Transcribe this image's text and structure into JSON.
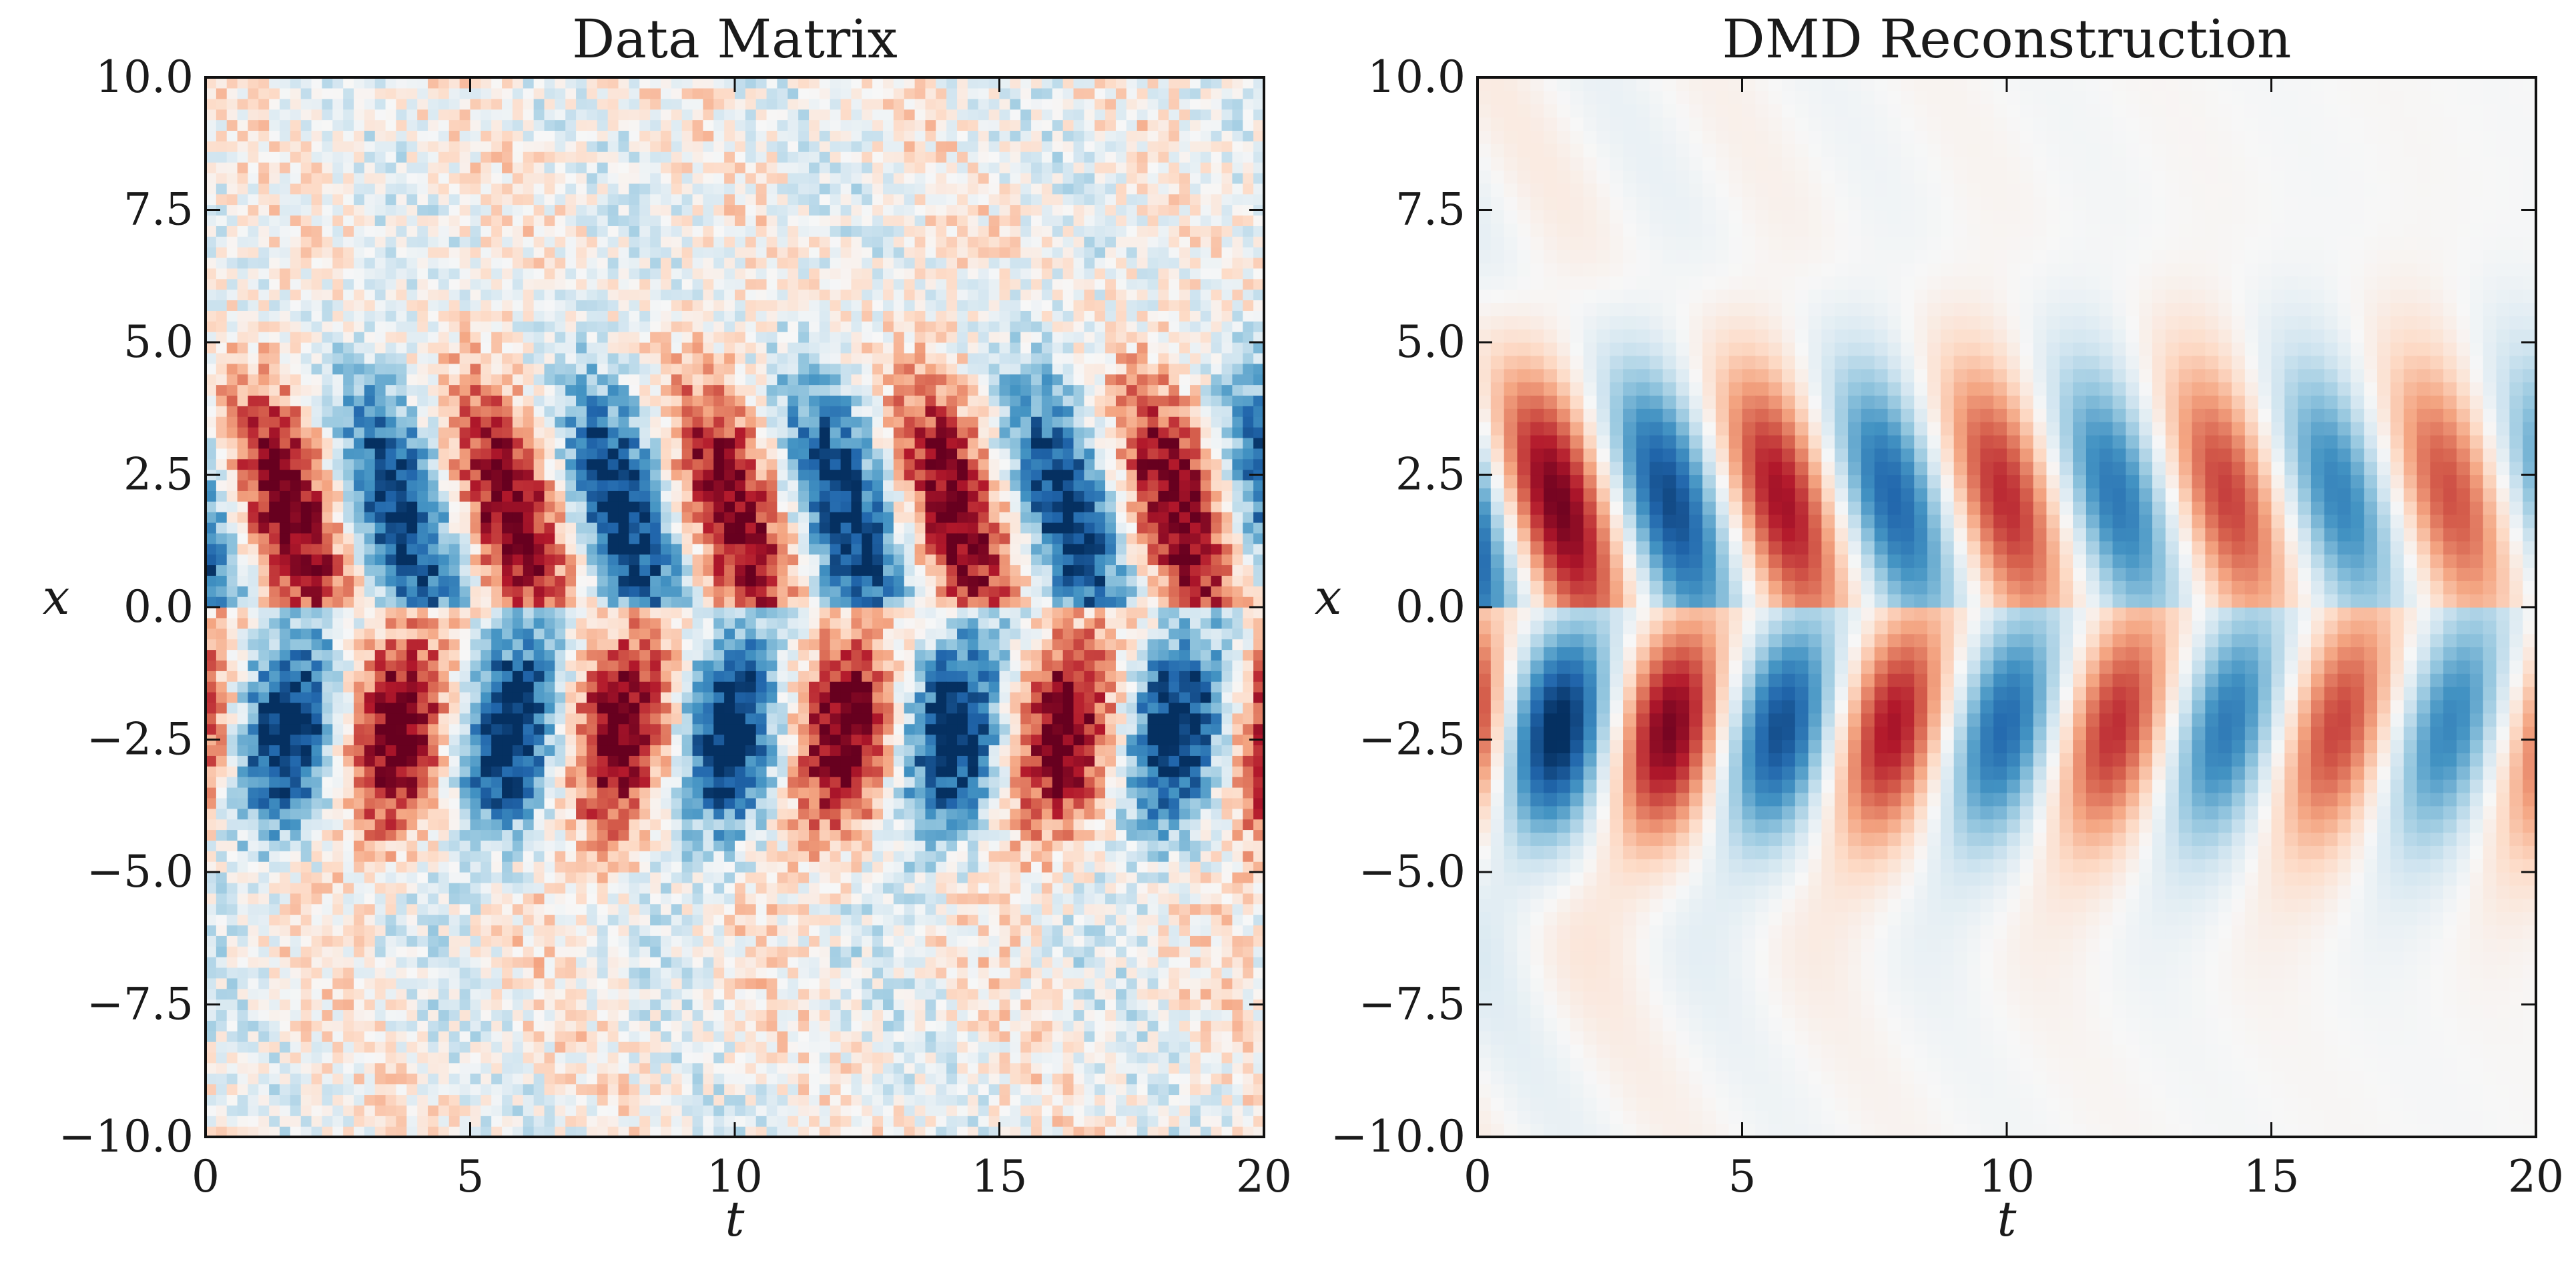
{
  "chart_data": [
    {
      "type": "heatmap",
      "title": "Data Matrix",
      "xlabel": "t",
      "ylabel": "x",
      "xlim": [
        0,
        20
      ],
      "ylim": [
        -10,
        10
      ],
      "xticks": [
        "0",
        "5",
        "10",
        "15",
        "20"
      ],
      "yticks": [
        "10.0",
        "7.5",
        "5.0",
        "2.5",
        "0.0",
        "−2.5",
        "−5.0",
        "−7.5",
        "−10.0"
      ],
      "colormap": [
        "#053061",
        "#2166ac",
        "#4393c3",
        "#92c5de",
        "#d1e5f0",
        "#f7f7f7",
        "#fddbc7",
        "#f4a582",
        "#d6604d",
        "#b2182b",
        "#67001f"
      ],
      "field": {
        "description_of_pattern": "alternating blue/red lobes, sign flips across x = 0",
        "oscillation_period_t": 4.2,
        "spatial_envelope_center": 2.2,
        "spatial_envelope_width": 2.6,
        "noisy": true,
        "decay": false
      }
    },
    {
      "type": "heatmap",
      "title": "DMD Reconstruction",
      "xlabel": "t",
      "ylabel": "x",
      "xlim": [
        0,
        20
      ],
      "ylim": [
        -10,
        10
      ],
      "xticks": [
        "0",
        "5",
        "10",
        "15",
        "20"
      ],
      "yticks": [
        "10.0",
        "7.5",
        "5.0",
        "2.5",
        "0.0",
        "−2.5",
        "−5.0",
        "−7.5",
        "−10.0"
      ],
      "colormap": [
        "#053061",
        "#2166ac",
        "#4393c3",
        "#92c5de",
        "#d1e5f0",
        "#f7f7f7",
        "#fddbc7",
        "#f4a582",
        "#d6604d",
        "#b2182b",
        "#67001f"
      ],
      "field": {
        "description_of_pattern": "smooth alternating lobes, sign flips across x = 0, amplitude fades with t",
        "oscillation_period_t": 4.2,
        "spatial_envelope_center": 2.2,
        "spatial_envelope_width": 2.6,
        "noisy": false,
        "decay": true
      }
    }
  ]
}
